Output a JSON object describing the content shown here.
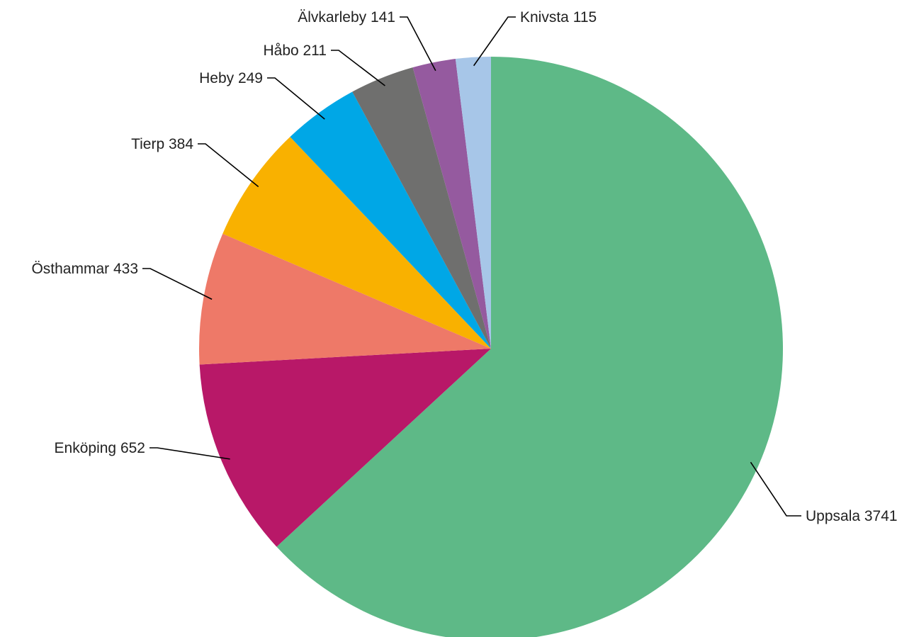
{
  "chart_data": {
    "type": "pie",
    "title": "",
    "start": "12 o'clock",
    "direction": "clockwise",
    "legend": "none",
    "slices": [
      {
        "label": "Uppsala",
        "value": 3741,
        "text": "Uppsala 3741",
        "color": "#5EB987"
      },
      {
        "label": "Enköping",
        "value": 652,
        "text": "Enköping 652",
        "color": "#B81868"
      },
      {
        "label": "Östhammar",
        "value": 433,
        "text": "Östhammar 433",
        "color": "#EE7968"
      },
      {
        "label": "Tierp",
        "value": 384,
        "text": "Tierp 384",
        "color": "#F9B100"
      },
      {
        "label": "Heby",
        "value": 249,
        "text": "Heby 249",
        "color": "#00A7E6"
      },
      {
        "label": "Håbo",
        "value": 211,
        "text": "Håbo 211",
        "color": "#6F6F6E"
      },
      {
        "label": "Älvkarleby",
        "value": 141,
        "text": "Älvkarleby 141",
        "color": "#955A9F"
      },
      {
        "label": "Knivsta",
        "value": 115,
        "text": "Knivsta 115",
        "color": "#A7C6E8"
      }
    ]
  }
}
